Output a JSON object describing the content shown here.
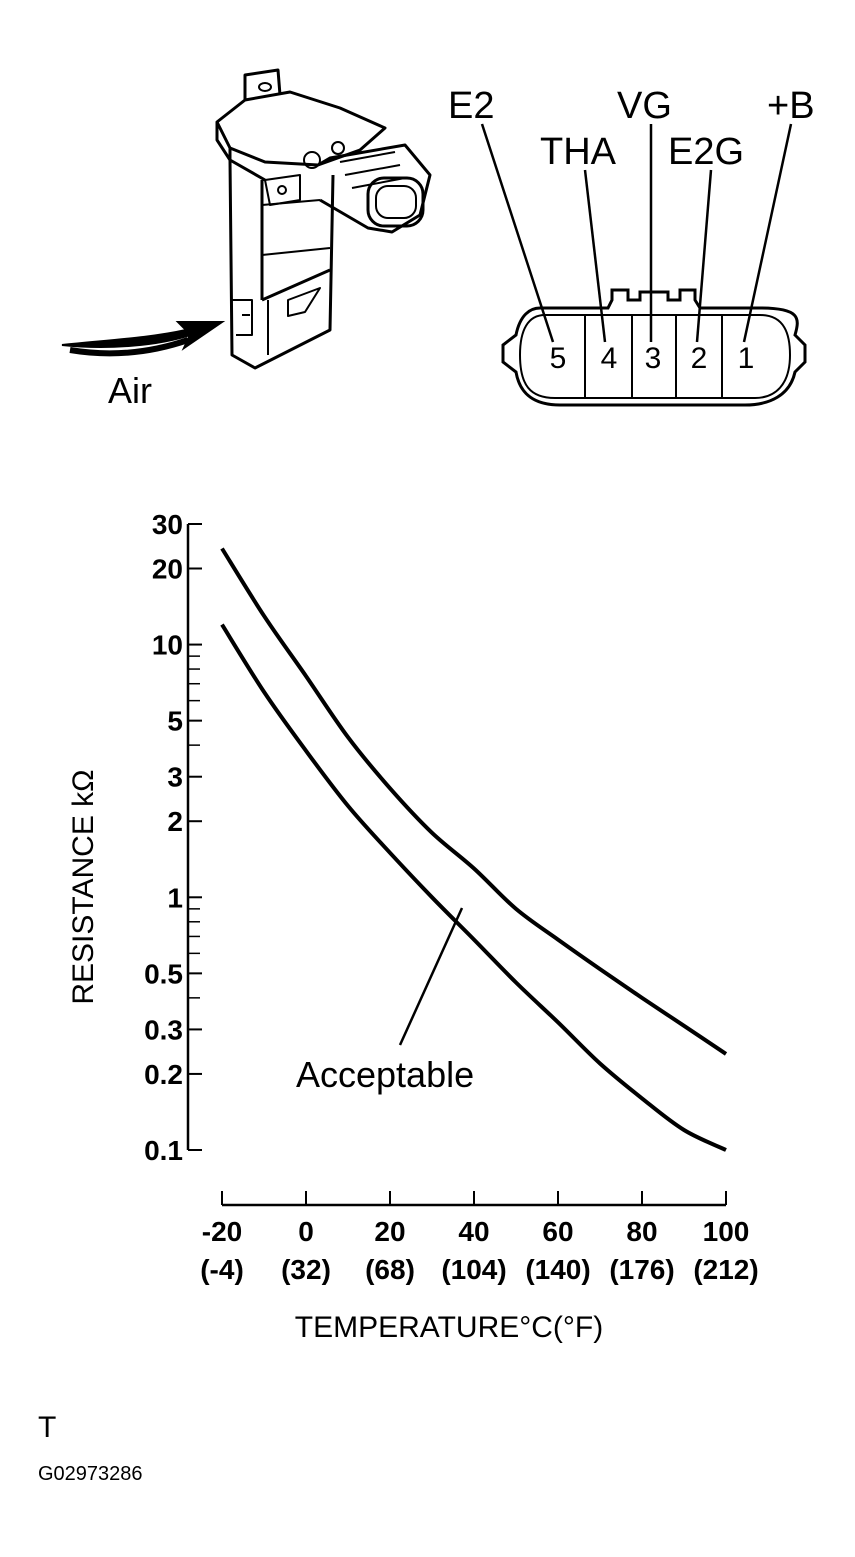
{
  "sensor": {
    "air_label": "Air"
  },
  "connector": {
    "pins": [
      {
        "number": "5",
        "name": "E2"
      },
      {
        "number": "4",
        "name": "THA"
      },
      {
        "number": "3",
        "name": "VG"
      },
      {
        "number": "2",
        "name": "E2G"
      },
      {
        "number": "1",
        "name": "+B"
      }
    ]
  },
  "chart_data": {
    "type": "line",
    "ylabel": "RESISTANCE kΩ",
    "xlabel": "TEMPERATURE°C(°F)",
    "y_scale": "log",
    "ylim": [
      0.1,
      30
    ],
    "xlim": [
      -20,
      100
    ],
    "y_ticks": [
      "30",
      "20",
      "10",
      "5",
      "3",
      "2",
      "1",
      "0.5",
      "0.3",
      "0.2",
      "0.1"
    ],
    "y_tick_values": [
      30,
      20,
      10,
      5,
      3,
      2,
      1,
      0.5,
      0.3,
      0.2,
      0.1
    ],
    "y_minor_ticks": [
      9,
      8,
      7,
      6,
      4,
      0.9,
      0.8,
      0.7,
      0.6,
      0.4
    ],
    "x_ticks": [
      {
        "c": "-20",
        "f": "(-4)"
      },
      {
        "c": "0",
        "f": "(32)"
      },
      {
        "c": "20",
        "f": "(68)"
      },
      {
        "c": "40",
        "f": "(104)"
      },
      {
        "c": "60",
        "f": "(140)"
      },
      {
        "c": "80",
        "f": "(176)"
      },
      {
        "c": "100",
        "f": "(212)"
      }
    ],
    "x_tick_values": [
      -20,
      0,
      20,
      40,
      60,
      80,
      100
    ],
    "series": [
      {
        "x": [
          -20,
          -10,
          0,
          10,
          20,
          30,
          40,
          50,
          60,
          70,
          80,
          90,
          100
        ],
        "y": [
          24,
          13,
          7.5,
          4.3,
          2.7,
          1.8,
          1.3,
          0.9,
          0.68,
          0.52,
          0.4,
          0.31,
          0.24
        ]
      },
      {
        "x": [
          -20,
          -10,
          0,
          10,
          20,
          30,
          40,
          50,
          60,
          70,
          80,
          90,
          100
        ],
        "y": [
          12,
          6.5,
          3.8,
          2.3,
          1.5,
          1.0,
          0.68,
          0.46,
          0.32,
          0.22,
          0.16,
          0.12,
          0.1
        ]
      }
    ],
    "annotation": "Acceptable"
  },
  "footer": {
    "marker": "T",
    "figure_id": "G02973286"
  }
}
